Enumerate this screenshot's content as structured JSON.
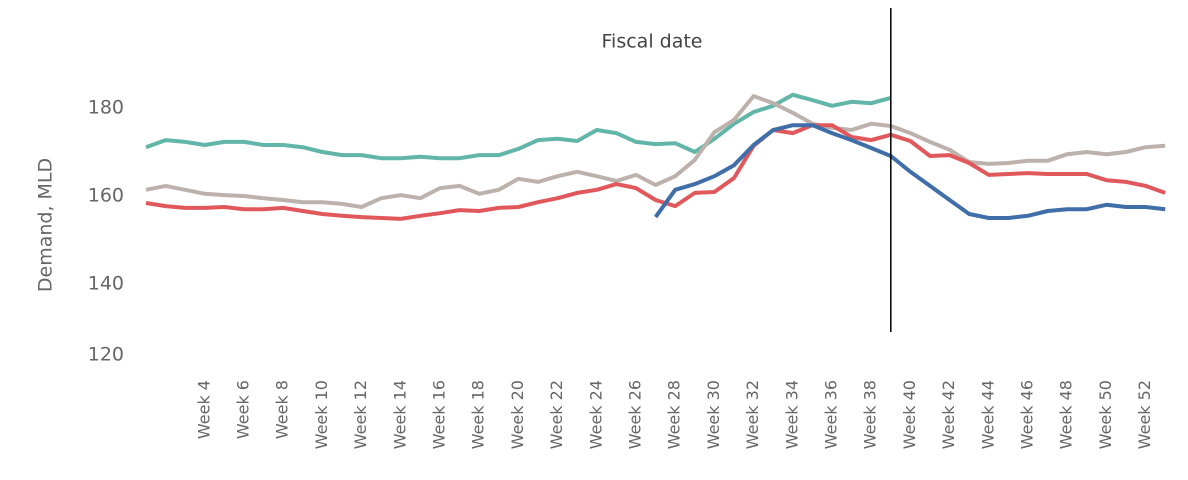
{
  "chart_data": {
    "type": "line",
    "ylabel": "Demand, MLD",
    "categories": [
      null,
      null,
      null,
      "Week 4",
      null,
      "Week 6",
      null,
      "Week 8",
      null,
      "Week 10",
      null,
      "Week 12",
      null,
      "Week 14",
      null,
      "Week 16",
      null,
      "Week 18",
      null,
      "Week 20",
      null,
      "Week 22",
      null,
      "Week 24",
      null,
      "Week 26",
      null,
      "Week 28",
      null,
      "Week 30",
      null,
      "Week 32",
      null,
      "Week 34",
      null,
      "Week 36",
      null,
      "Week 38",
      null,
      "Week 40",
      null,
      "Week 42",
      null,
      "Week 44",
      null,
      "Week 46",
      null,
      "Week 48",
      null,
      "Week 50",
      null,
      "Week 52",
      null
    ],
    "series": [
      {
        "color": "#62b5a9",
        "values": [
          171.1,
          172.7,
          172.3,
          171.6,
          172.3,
          172.3,
          171.6,
          171.6,
          171.1,
          170.0,
          169.3,
          169.3,
          168.6,
          168.6,
          168.9,
          168.6,
          168.6,
          169.3,
          169.3,
          170.7,
          172.7,
          173.0,
          172.5,
          175.0,
          174.3,
          172.3,
          171.8,
          172.0,
          170.0,
          173.0,
          176.4,
          179.1,
          180.5,
          183.0,
          181.8,
          180.5,
          181.4,
          181.1,
          182.3,
          null,
          null,
          null,
          null,
          null,
          null,
          null,
          null,
          null,
          null,
          null,
          null,
          null,
          null
        ]
      },
      {
        "color": "#bdb1ac",
        "values": [
          161.4,
          162.3,
          161.4,
          160.5,
          160.2,
          160.0,
          159.5,
          159.1,
          158.6,
          158.6,
          158.2,
          157.5,
          159.5,
          160.2,
          159.5,
          161.8,
          162.3,
          160.5,
          161.4,
          163.9,
          163.2,
          164.5,
          165.5,
          164.5,
          163.4,
          164.8,
          162.5,
          164.5,
          168.2,
          174.5,
          177.3,
          182.7,
          181.1,
          178.9,
          176.4,
          175.5,
          175.0,
          176.4,
          175.9,
          174.3,
          172.3,
          170.5,
          167.7,
          167.3,
          167.5,
          168.0,
          168.0,
          169.5,
          170.0,
          169.5,
          170.0,
          171.1,
          171.4
        ]
      },
      {
        "color": "#e0585b",
        "values": [
          158.4,
          157.7,
          157.3,
          157.3,
          157.5,
          157.0,
          157.0,
          157.3,
          156.6,
          155.9,
          155.5,
          155.2,
          155.0,
          154.8,
          155.5,
          156.1,
          156.8,
          156.6,
          157.3,
          157.5,
          158.6,
          159.5,
          160.7,
          161.4,
          162.7,
          161.8,
          159.1,
          157.7,
          160.7,
          160.9,
          164.1,
          171.4,
          175.0,
          174.3,
          176.1,
          176.1,
          173.4,
          172.7,
          173.9,
          172.5,
          169.1,
          169.3,
          167.5,
          164.8,
          165.0,
          165.2,
          165.0,
          165.0,
          165.0,
          163.6,
          163.2,
          162.3,
          160.7
        ]
      },
      {
        "color": "#3f6ea8",
        "values": [
          null,
          null,
          null,
          null,
          null,
          null,
          null,
          null,
          null,
          null,
          null,
          null,
          null,
          null,
          null,
          null,
          null,
          null,
          null,
          null,
          null,
          null,
          null,
          null,
          null,
          null,
          155.2,
          161.4,
          162.7,
          164.5,
          167.0,
          171.6,
          175.0,
          176.1,
          176.1,
          174.3,
          172.7,
          170.9,
          169.1,
          165.5,
          162.3,
          159.1,
          155.9,
          155.0,
          155.0,
          155.5,
          156.6,
          157.0,
          157.0,
          158.0,
          157.5,
          157.5,
          157.0
        ]
      }
    ],
    "ylim": [
      120,
      190
    ],
    "yticks": [
      120,
      140,
      160,
      180
    ],
    "grid": false,
    "vline": {
      "label": "Fiscal date",
      "category_index": 38
    }
  }
}
